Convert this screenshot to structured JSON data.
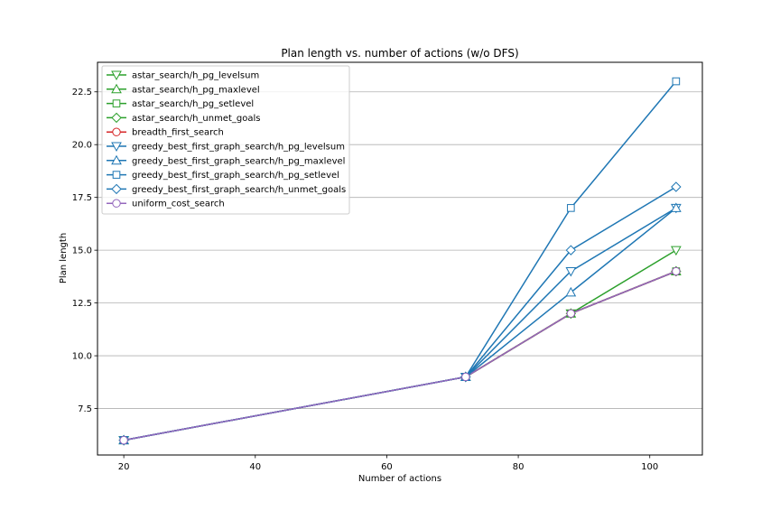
{
  "chart_data": {
    "type": "line",
    "title": "Plan length vs. number of actions (w/o DFS)",
    "xlabel": "Number of actions",
    "ylabel": "Plan length",
    "xlim": [
      16,
      108
    ],
    "ylim": [
      5.3,
      23.9
    ],
    "xticks": [
      20,
      40,
      60,
      80,
      100
    ],
    "yticks": [
      7.5,
      10.0,
      12.5,
      15.0,
      17.5,
      20.0,
      22.5
    ],
    "xtick_labels": [
      "20",
      "40",
      "60",
      "80",
      "100"
    ],
    "ytick_labels": [
      "7.5",
      "10.0",
      "12.5",
      "15.0",
      "17.5",
      "20.0",
      "22.5"
    ],
    "grid": "y-major",
    "legend_position": "top-left",
    "x": [
      20,
      72,
      88,
      104
    ],
    "series": [
      {
        "name": "astar_search/h_pg_levelsum",
        "values": [
          6,
          9,
          12,
          15
        ],
        "color": "#2ca02c",
        "marker": "triangle-down"
      },
      {
        "name": "astar_search/h_pg_maxlevel",
        "values": [
          6,
          9,
          12,
          14
        ],
        "color": "#2ca02c",
        "marker": "triangle-up"
      },
      {
        "name": "astar_search/h_pg_setlevel",
        "values": [
          6,
          9,
          12,
          14
        ],
        "color": "#2ca02c",
        "marker": "square"
      },
      {
        "name": "astar_search/h_unmet_goals",
        "values": [
          6,
          9,
          12,
          14
        ],
        "color": "#2ca02c",
        "marker": "diamond"
      },
      {
        "name": "breadth_first_search",
        "values": [
          6,
          9,
          12,
          14
        ],
        "color": "#d62728",
        "marker": "circle"
      },
      {
        "name": "greedy_best_first_graph_search/h_pg_levelsum",
        "values": [
          6,
          9,
          14,
          17
        ],
        "color": "#1f77b4",
        "marker": "triangle-down"
      },
      {
        "name": "greedy_best_first_graph_search/h_pg_maxlevel",
        "values": [
          6,
          9,
          13,
          17
        ],
        "color": "#1f77b4",
        "marker": "triangle-up"
      },
      {
        "name": "greedy_best_first_graph_search/h_pg_setlevel",
        "values": [
          6,
          9,
          17,
          23
        ],
        "color": "#1f77b4",
        "marker": "square"
      },
      {
        "name": "greedy_best_first_graph_search/h_unmet_goals",
        "values": [
          6,
          9,
          15,
          18
        ],
        "color": "#1f77b4",
        "marker": "diamond"
      },
      {
        "name": "uniform_cost_search",
        "values": [
          6,
          9,
          12,
          14
        ],
        "color": "#9467bd",
        "marker": "circle"
      }
    ]
  }
}
